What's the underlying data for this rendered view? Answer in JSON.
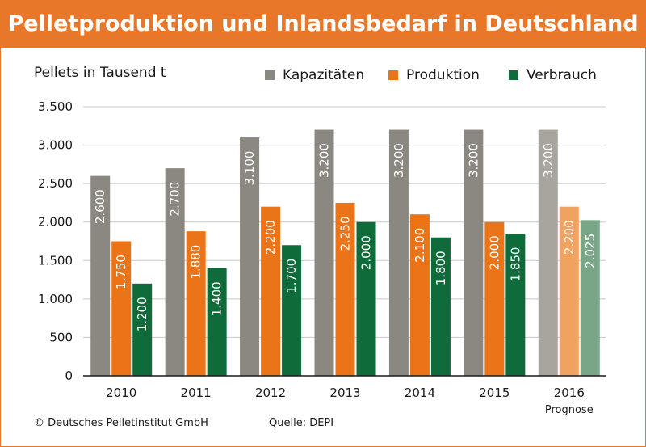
{
  "header": {
    "title": "Pelletproduktion und Inlandsbedarf in Deutschland"
  },
  "footer": {
    "copyright": "© Deutsches Pelletinstitut GmbH",
    "source": "Quelle: DEPI"
  },
  "colors": {
    "accent": "#e9772a",
    "kapazitaeten": "#8b8882",
    "produktion": "#ec7418",
    "verbrauch": "#0f6b3a",
    "kapazitaeten_prognose": "#a8a59f",
    "produktion_prognose": "#f0a25f",
    "verbrauch_prognose": "#7aa688",
    "grid": "#c8c8c8"
  },
  "chart_data": {
    "type": "bar",
    "ylabel": "Pellets in Tausend t",
    "ylim": [
      0,
      3500
    ],
    "yticks": [
      0,
      500,
      1000,
      1500,
      2000,
      2500,
      3000,
      3500
    ],
    "ytick_labels": [
      "0",
      "500",
      "1.000",
      "1.500",
      "2.000",
      "2.500",
      "3.000",
      "3.500"
    ],
    "categories": [
      "2010",
      "2011",
      "2012",
      "2013",
      "2014",
      "2015",
      "2016"
    ],
    "category_notes": [
      "",
      "",
      "",
      "",
      "",
      "",
      "Prognose"
    ],
    "grid": true,
    "legend_position": "top",
    "series": [
      {
        "name": "Kapazitäten",
        "values": [
          2600,
          2700,
          3100,
          3200,
          3200,
          3200,
          3200
        ],
        "labels": [
          "2.600",
          "2.700",
          "3.100",
          "3.200",
          "3.200",
          "3.200",
          "3.200"
        ]
      },
      {
        "name": "Produktion",
        "values": [
          1750,
          1880,
          2200,
          2250,
          2100,
          2000,
          2200
        ],
        "labels": [
          "1.750",
          "1.880",
          "2.200",
          "2.250",
          "2.100",
          "2.000",
          "2.200"
        ]
      },
      {
        "name": "Verbrauch",
        "values": [
          1200,
          1400,
          1700,
          2000,
          1800,
          1850,
          2025
        ],
        "labels": [
          "1.200",
          "1.400",
          "1.700",
          "2.000",
          "1.800",
          "1.850",
          "2.025"
        ]
      }
    ]
  }
}
